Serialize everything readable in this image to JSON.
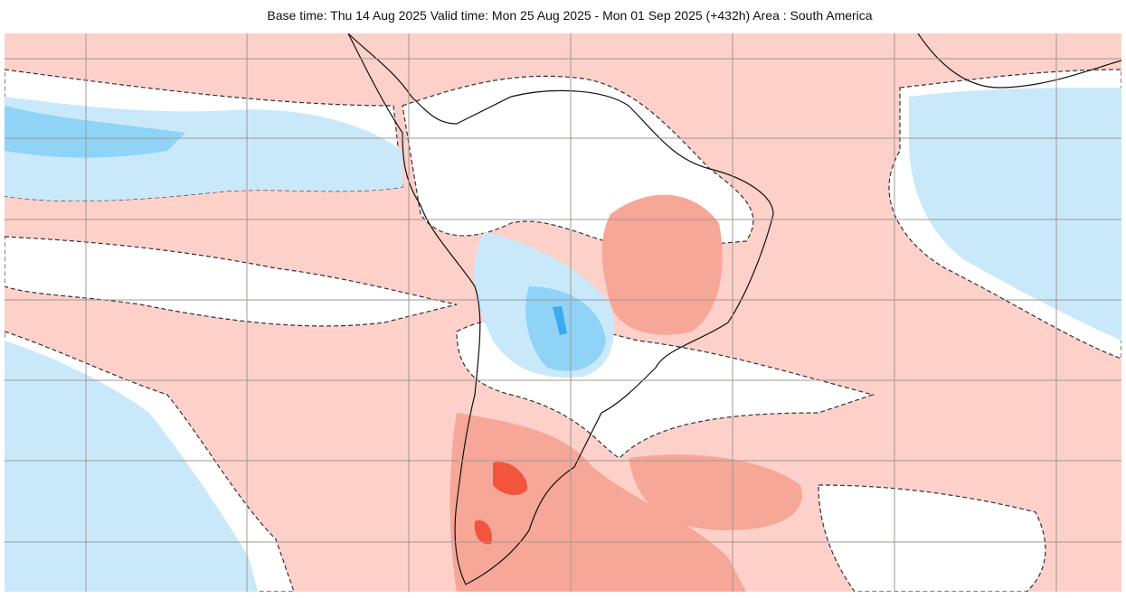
{
  "title": "Base time: Thu 14 Aug 2025 Valid time: Mon 25 Aug 2025 - Mon 01 Sep 2025 (+432h) Area : South America",
  "colors": {
    "background_anomaly": "#fdd0c9",
    "neutral": "#ffffff",
    "light_blue": "#c9e9fb",
    "mid_blue": "#8fd3f7",
    "dark_blue": "#3fa9ee",
    "mid_red": "#f7a797",
    "dark_red": "#f2553b",
    "grid": "#a09890",
    "coast": "#111111"
  }
}
